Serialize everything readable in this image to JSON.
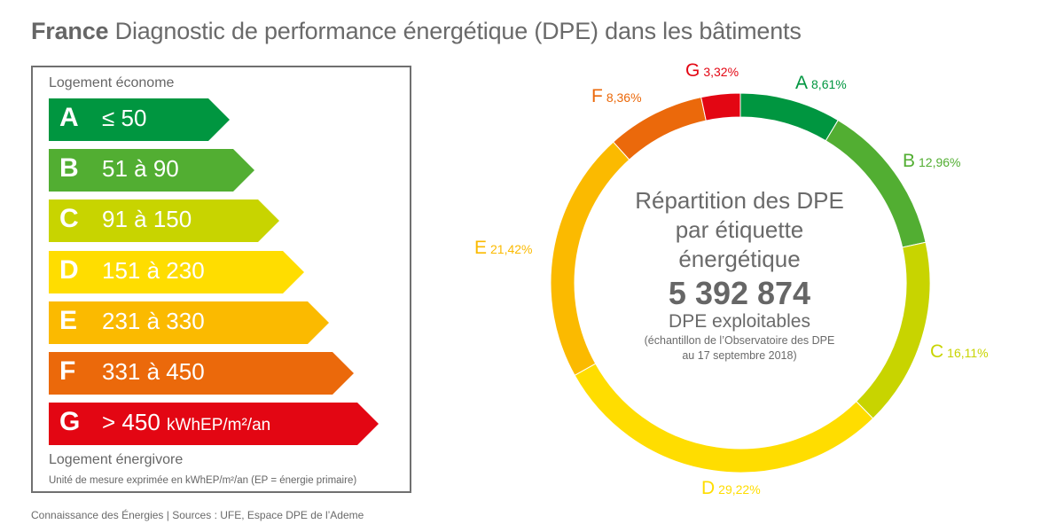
{
  "header": {
    "title_bold": "France",
    "title_rest": " Diagnostic de performance énergétique (DPE) dans les bâtiments"
  },
  "scale_panel": {
    "top_label": "Logement économe",
    "bottom_label": "Logement énergivore",
    "unit_note": "Unité de mesure exprimée en kWhEP/m²/an (EP = énergie primaire)",
    "classes": [
      {
        "letter": "A",
        "range": "≤ 50",
        "unit": "",
        "color": "#009640"
      },
      {
        "letter": "B",
        "range": "51 à 90",
        "unit": "",
        "color": "#52AE32"
      },
      {
        "letter": "C",
        "range": "91 à 150",
        "unit": "",
        "color": "#C8D400"
      },
      {
        "letter": "D",
        "range": "151 à 230",
        "unit": "",
        "color": "#FFDD00"
      },
      {
        "letter": "E",
        "range": "231 à 330",
        "unit": "",
        "color": "#FBBA00"
      },
      {
        "letter": "F",
        "range": "331 à 450",
        "unit": "",
        "color": "#EB690B"
      },
      {
        "letter": "G",
        "range": "> 450",
        "unit": "kWhEP/m²/an",
        "color": "#E30613"
      }
    ]
  },
  "chart_data": {
    "type": "pie",
    "variant": "donut",
    "title": "Répartition des DPE par étiquette énergétique",
    "center_title_lines": [
      "Répartition des DPE",
      "par étiquette",
      "énergétique"
    ],
    "total": "5 392 874",
    "total_label": "DPE exploitables",
    "note_lines": [
      "(échantillon de l’Observatoire des DPE",
      "au 17 septembre 2018)"
    ],
    "start": "top, clockwise",
    "slices": [
      {
        "label": "A",
        "value": 8.61,
        "value_text": "8,61%",
        "color": "#009640"
      },
      {
        "label": "B",
        "value": 12.96,
        "value_text": "12,96%",
        "color": "#52AE32"
      },
      {
        "label": "C",
        "value": 16.11,
        "value_text": "16,11%",
        "color": "#C8D400"
      },
      {
        "label": "D",
        "value": 29.22,
        "value_text": "29,22%",
        "color": "#FFDD00"
      },
      {
        "label": "E",
        "value": 21.42,
        "value_text": "21,42%",
        "color": "#FBBA00"
      },
      {
        "label": "F",
        "value": 8.36,
        "value_text": "8,36%",
        "color": "#EB690B"
      },
      {
        "label": "G",
        "value": 3.32,
        "value_text": "3,32%",
        "color": "#E30613"
      }
    ]
  },
  "footer": {
    "source": "Connaissance des Énergies | Sources : UFE, Espace DPE de l’Ademe"
  }
}
